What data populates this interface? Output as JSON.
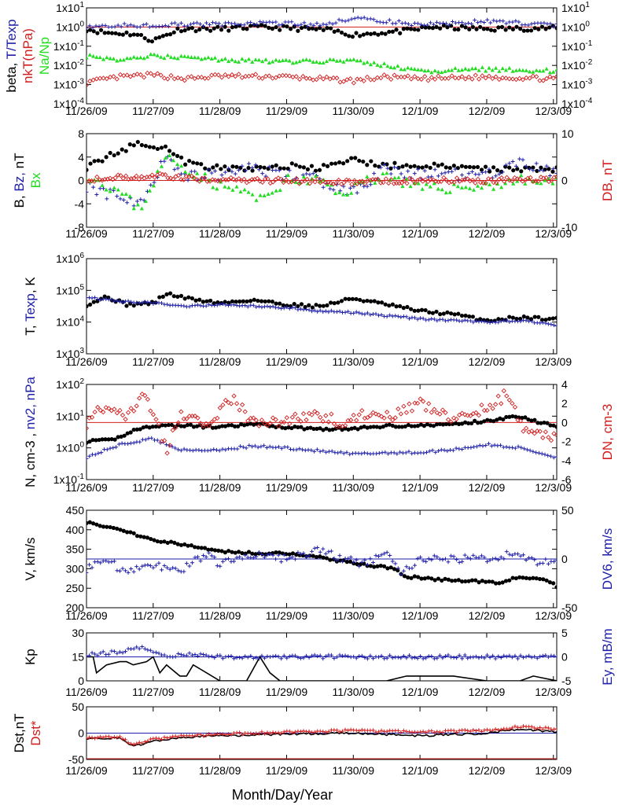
{
  "xlabel": "Month/Day/Year",
  "x_ticks": [
    "11/26/09",
    "11/27/09",
    "11/28/09",
    "11/29/09",
    "11/30/09",
    "12/1/09",
    "12/2/09",
    "12/3/09"
  ],
  "colors": {
    "black": "#000000",
    "blue": "#1f1fa8",
    "red": "#d21e1e",
    "green": "#22dd22"
  },
  "chart_data": [
    {
      "type": "scatter",
      "ylabel_left": [
        {
          "text": "beta, ",
          "color": "#000000"
        },
        {
          "text": "T/Texp",
          "color": "#1f1fa8"
        }
      ],
      "ylabel_left2": [
        {
          "text": "nkT(nPa)",
          "color": "#d21e1e"
        }
      ],
      "ylabel_left3": [
        {
          "text": "Na/Np",
          "color": "#22dd22"
        }
      ],
      "scale": "log",
      "ylim": [
        0.0001,
        10
      ],
      "yticks_left": [
        "1x10-4",
        "1x10-3",
        "1x10-2",
        "1x10-1",
        "1x100",
        "1x101"
      ],
      "yticks_right": [
        "1x10-4",
        "1x10-3",
        "1x10-2",
        "1x10-1",
        "1x100",
        "1x101"
      ],
      "ref_line": {
        "value": 1,
        "color": "#d21e1e"
      },
      "series": [
        {
          "key": "beta",
          "marker": "dot",
          "color": "#000000",
          "shape": "beta"
        },
        {
          "key": "T/Texp",
          "marker": "plus",
          "color": "#1f1fa8",
          "shape": "ttexp"
        },
        {
          "key": "nkT",
          "marker": "diamond",
          "color": "#d21e1e",
          "shape": "nkt"
        },
        {
          "key": "Na/Np",
          "marker": "triangle",
          "color": "#22dd22",
          "shape": "nanp"
        }
      ]
    },
    {
      "type": "scatter",
      "ylabel_left": [
        {
          "text": "B, ",
          "color": "#000000"
        },
        {
          "text": "Bz, ",
          "color": "#1f1fa8"
        },
        {
          "text": "nT",
          "color": "#000000"
        }
      ],
      "ylabel_left2": [
        {
          "text": "Bx",
          "color": "#22dd22"
        }
      ],
      "ylabel_right": [
        {
          "text": "DB, nT",
          "color": "#d21e1e"
        }
      ],
      "scale": "linear",
      "ylim": [
        -8,
        8
      ],
      "ylim_right": [
        -10,
        10
      ],
      "yticks_left": [
        "-8",
        "-4",
        "0",
        "4",
        "8"
      ],
      "yticks_right": [
        "-10",
        "0",
        "10"
      ],
      "ref_line": {
        "value": 0,
        "color": "#d21e1e"
      },
      "series": [
        {
          "key": "B",
          "marker": "dot",
          "color": "#000000",
          "shape": "B"
        },
        {
          "key": "Bz",
          "marker": "plus",
          "color": "#1f1fa8",
          "shape": "Bz"
        },
        {
          "key": "Bx",
          "marker": "triangle",
          "color": "#22dd22",
          "shape": "Bx"
        },
        {
          "key": "DB",
          "marker": "diamond",
          "color": "#d21e1e",
          "shape": "DB"
        }
      ]
    },
    {
      "type": "scatter",
      "ylabel_left": [
        {
          "text": "T, ",
          "color": "#000000"
        },
        {
          "text": "Texp",
          "color": "#1f1fa8"
        },
        {
          "text": ", K",
          "color": "#000000"
        }
      ],
      "scale": "log",
      "ylim": [
        1000,
        1000000
      ],
      "yticks_left": [
        "1x103",
        "1x104",
        "1x105",
        "1x106"
      ],
      "series": [
        {
          "key": "T",
          "marker": "dot",
          "color": "#000000",
          "shape": "T"
        },
        {
          "key": "Texp",
          "marker": "plus",
          "color": "#1f1fa8",
          "shape": "Texp"
        }
      ]
    },
    {
      "type": "scatter",
      "ylabel_left": [
        {
          "text": "N, cm-3 , ",
          "color": "#000000"
        },
        {
          "text": "nv2, nPa",
          "color": "#1f1fa8"
        }
      ],
      "ylabel_right": [
        {
          "text": "DN, cm-3",
          "color": "#d21e1e"
        }
      ],
      "scale": "log",
      "ylim": [
        0.1,
        100
      ],
      "ylim_right": [
        -6,
        4
      ],
      "yticks_left": [
        "1x10-1",
        "1x100",
        "1x101",
        "1x102"
      ],
      "yticks_right": [
        "-6",
        "-4",
        "-2",
        "0",
        "2",
        "4"
      ],
      "ref_line": {
        "value": 0,
        "axis": "right",
        "color": "#d21e1e"
      },
      "series": [
        {
          "key": "N",
          "marker": "dot",
          "color": "#000000",
          "shape": "N"
        },
        {
          "key": "nv2",
          "marker": "plus",
          "color": "#1f1fa8",
          "shape": "nv2"
        },
        {
          "key": "DN",
          "marker": "diamond",
          "color": "#d21e1e",
          "shape": "DN"
        }
      ]
    },
    {
      "type": "scatter",
      "ylabel_left": [
        {
          "text": "V, km/s",
          "color": "#000000"
        }
      ],
      "ylabel_right": [
        {
          "text": "DV6, km/s",
          "color": "#1f1fa8"
        }
      ],
      "scale": "linear",
      "ylim": [
        200,
        450
      ],
      "ylim_right": [
        -50,
        50
      ],
      "yticks_left": [
        "200",
        "250",
        "300",
        "350",
        "400",
        "450"
      ],
      "yticks_right": [
        "-50",
        "0",
        "50"
      ],
      "ref_line": {
        "value": 0,
        "axis": "right",
        "color": "#1f1fa8"
      },
      "series": [
        {
          "key": "V",
          "marker": "dot",
          "color": "#000000",
          "shape": "V"
        },
        {
          "key": "DV6",
          "marker": "plus",
          "color": "#1f1fa8",
          "shape": "DV6"
        }
      ]
    },
    {
      "type": "line",
      "ylabel_left": [
        {
          "text": "Kp",
          "color": "#000000"
        }
      ],
      "ylabel_right": [
        {
          "text": "Ey, mB/m",
          "color": "#1f1fa8"
        }
      ],
      "scale": "linear",
      "ylim": [
        0,
        30
      ],
      "ylim_right": [
        -5,
        5
      ],
      "yticks_left": [
        "0",
        "15",
        "30"
      ],
      "yticks_right": [
        "-5",
        "0",
        "5"
      ],
      "ref_line": {
        "value": 0,
        "axis": "right",
        "color": "#1f1fa8"
      },
      "series": [
        {
          "key": "Kp",
          "marker": "line",
          "color": "#000000",
          "shape": "Kp"
        },
        {
          "key": "Ey",
          "marker": "plus",
          "color": "#1f1fa8",
          "shape": "Ey"
        }
      ]
    },
    {
      "type": "line",
      "ylabel_left": [
        {
          "text": "Dst,nT",
          "color": "#000000"
        }
      ],
      "ylabel_left2": [
        {
          "text": "Dst*",
          "color": "#d21e1e"
        }
      ],
      "scale": "linear",
      "ylim": [
        -50,
        50
      ],
      "yticks_left": [
        "-50",
        "0",
        "50"
      ],
      "ref_line": {
        "value": 0,
        "color": "#1f1fa8"
      },
      "bottom_line": {
        "value": -50,
        "color": "#d21e1e"
      },
      "series": [
        {
          "key": "Dst",
          "marker": "line",
          "color": "#000000",
          "shape": "Dst"
        },
        {
          "key": "Dst*",
          "marker": "plus",
          "color": "#d21e1e",
          "shape": "DstStar"
        }
      ]
    }
  ]
}
